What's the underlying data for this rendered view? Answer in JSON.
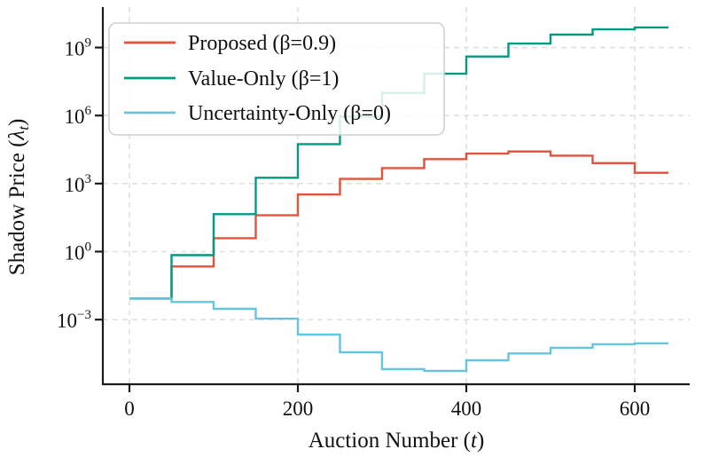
{
  "chart_data": {
    "type": "line",
    "subtype": "step-post",
    "title": "",
    "xlabel_parts": {
      "prefix": "Auction Number (",
      "italic_var": "t",
      "suffix": ")"
    },
    "ylabel_parts": {
      "prefix": "Shadow Price (",
      "italic_var": "λ",
      "sub_var": "t",
      "suffix": ")"
    },
    "x_tick_values": [
      0,
      200,
      400,
      600
    ],
    "x_tick_labels": [
      "0",
      "200",
      "400",
      "600"
    ],
    "y_tick_exponents": [
      9,
      6,
      3,
      0,
      -3
    ],
    "y_tick_base": "10",
    "xlim": [
      -32,
      665
    ],
    "ylim_log10": [
      -6,
      10.8
    ],
    "grid": "dashed-major-both",
    "legend_position": "upper-left",
    "t_breaks": [
      0,
      50,
      100,
      150,
      200,
      250,
      300,
      350,
      400,
      450,
      500,
      550,
      600
    ],
    "t_end": 640,
    "series": [
      {
        "name": "Proposed (β=0.9)",
        "color": "#e2533c",
        "values": [
          0.0085,
          0.22,
          3.9,
          40,
          330,
          1600,
          4800,
          12000,
          21000,
          26000,
          17000,
          8000,
          3000
        ]
      },
      {
        "name": "Value-Only (β=1)",
        "color": "#029b80",
        "values": [
          0.0085,
          0.7,
          45,
          1800,
          55000,
          900000,
          10000000.0,
          70000000.0,
          400000000.0,
          1500000000.0,
          3700000000.0,
          6300000000.0,
          7700000000.0
        ]
      },
      {
        "name": "Uncertainty-Only (β=0)",
        "color": "#66c5de",
        "values": [
          0.0085,
          0.006,
          0.003,
          0.0011,
          0.00022,
          3.6e-05,
          6.5e-06,
          5.5e-06,
          1.6e-05,
          3.2e-05,
          5.7e-05,
          8.2e-05,
          9e-05
        ]
      }
    ],
    "colors": {
      "spine": "#1c1c1c",
      "grid": "#e0e0e0",
      "legend_border": "#cfcfcf",
      "legend_bg": "#ffffff",
      "text": "#111111"
    }
  }
}
